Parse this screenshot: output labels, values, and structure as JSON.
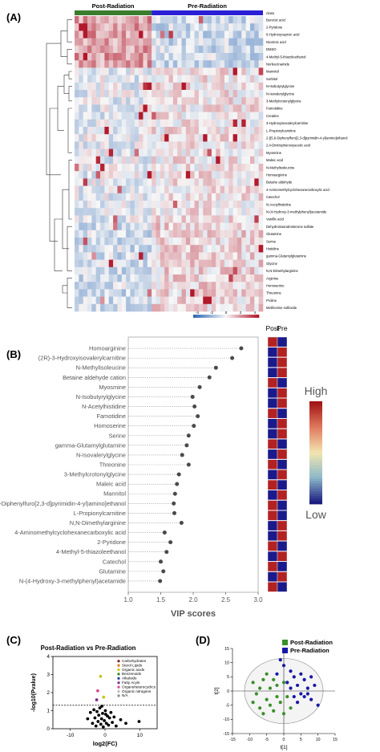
{
  "panels": {
    "a": "(A)",
    "b": "(B)",
    "c": "(C)",
    "d": "(D)"
  },
  "chart_data": [
    {
      "type": "heatmap",
      "panel": "(A)",
      "groups": [
        {
          "name": "Post-Radiation",
          "color": "#3a7d2c"
        },
        {
          "name": "Pre-Radiation",
          "color": "#2b1fd6"
        }
      ],
      "annotation_label": "class",
      "rows": [
        "Benzoic acid",
        "2-Pyridone",
        "6-Hydroxycaproic acid",
        "Nicotinic acid",
        "DMSO",
        "4-Methyl-5-thiazoleethanol",
        "Norleucinamide",
        "Mannitol",
        "Sorbitol",
        "N-Isobutyrylglycine",
        "N-Isovalerylglycine",
        "3-Methylcrotonylglycine",
        "Famotidine",
        "Creatine",
        "3-Hydroxyisovalerylcarnitine",
        "L-Propionylcarnitine",
        "2-[(5,6-Diphenylfuro[2,3-d]pyrimidin-4-yl)amino]ethanol",
        "2,4-Dinitrophenoxyacetic acid",
        "Myosmine",
        "Maleic acid",
        "N-Methylisoleucine",
        "Homoarginine",
        "Betaine aldehyde",
        "4-Aminomethylcyclohexanecarboxylic acid",
        "Catechol",
        "N-Acetylhistidine",
        "N-(4-Hydroxy-3-methylphenyl)acetamide",
        "Vanillic acid",
        "Dehydroisoandrosterone sulfate",
        "Glutamine",
        "Serine",
        "Histidine",
        "gamma-Glutamylglutamine",
        "Glycine",
        "N,N-Dimethylarginine",
        "Arginine",
        "Homoserine",
        "Threonine",
        "Proline",
        "Methionine sulfoxide"
      ],
      "color_scale": {
        "ticks": [
          "-4",
          "-2",
          "0",
          "2",
          "4"
        ],
        "low": "#2e68b4",
        "mid": "#f7f7f7",
        "high": "#b2182b"
      }
    },
    {
      "type": "scatter",
      "panel": "(B)",
      "xlabel": "VIP scores",
      "xlim": [
        1.0,
        3.0
      ],
      "xticks": [
        "1.0",
        "1.5",
        "2.0",
        "2.5",
        "3.0"
      ],
      "categories": [
        "Homoarginine",
        "(2R)-3-Hydroxyisovalerylcarnitine",
        "N-Methylisoleucine",
        "Betaine aldehyde cation",
        "Myosmine",
        "N-Isobutyrylglycine",
        "N-Acetylhistidine",
        "Famotidine",
        "Homoserine",
        "Serine",
        "gamma-Glutamylglutamine",
        "N-Isovalerylglycine",
        "Threonine",
        "3-Methylcrotonylglycine",
        "Maleic acid",
        "Mannitol",
        "2-[(5,6-Diphenylfuro[2,3-d]pyrimidin-4-yl)amino]ethanol",
        "L-Propionylcarnitine",
        "N,N-Dimethylarginine",
        "4-Aminomethylcyclohexanecarboxylic acid",
        "2-Pyridone",
        "4-Methyl-5-thiazoleethanol",
        "Catechol",
        "Glutamine",
        "N-(4-Hydroxy-3-methylphenyl)acetamide"
      ],
      "values": [
        2.74,
        2.6,
        2.35,
        2.25,
        2.1,
        1.99,
        2.02,
        2.07,
        2.01,
        1.93,
        1.9,
        1.83,
        1.93,
        1.78,
        1.75,
        1.72,
        1.7,
        1.71,
        1.82,
        1.56,
        1.65,
        1.59,
        1.5,
        1.54,
        1.49
      ],
      "group_labels": [
        "Post",
        "Pre"
      ],
      "post_high": [
        true,
        false,
        false,
        false,
        true,
        false,
        false,
        true,
        false,
        false,
        true,
        false,
        true,
        false,
        true,
        false,
        true,
        true,
        false,
        false,
        true,
        false,
        true,
        false,
        true
      ],
      "legend": {
        "high": "High",
        "low": "Low"
      }
    },
    {
      "type": "scatter",
      "panel": "(C)",
      "title": "Post-Radiation vs Pre-Radiation",
      "xlabel": "log2(FC)",
      "ylabel": "-log10(Pvalue)",
      "xlim": [
        -15,
        15
      ],
      "ylim": [
        0,
        4
      ],
      "xticks": [
        "-10",
        "0",
        "10"
      ],
      "yticks": [
        "0",
        "1",
        "2",
        "3",
        "4"
      ],
      "threshold_y": 1.3,
      "legend": [
        {
          "name": "Carbohydrates",
          "color": "#8b1a1a"
        },
        {
          "name": "Sterol Lipids",
          "color": "#e07b1a"
        },
        {
          "name": "Organic acids",
          "color": "#c8c41e"
        },
        {
          "name": "Benzenoids",
          "color": "#2e8b2e"
        },
        {
          "name": "Alkaloids",
          "color": "#1f3fa0"
        },
        {
          "name": "Fatty Acyls",
          "color": "#7a2a8a"
        },
        {
          "name": "Organoheterocyclics",
          "color": "#e0478a"
        },
        {
          "name": "Organic nitrogens",
          "color": "#bdbdbd"
        },
        {
          "name": "N/A",
          "color": "#8a8a8a"
        }
      ],
      "points": [
        {
          "x": -1.3,
          "y": 2.9,
          "color": "#c8c41e"
        },
        {
          "x": -2.1,
          "y": 2.1,
          "color": "#e0478a"
        },
        {
          "x": -2.4,
          "y": 1.6,
          "color": "#7a2a8a"
        },
        {
          "x": -0.4,
          "y": 1.75,
          "color": "#c8c41e"
        },
        {
          "x": -5,
          "y": 0.55,
          "color": "#000000"
        },
        {
          "x": -4.2,
          "y": 0.9,
          "color": "#000000"
        },
        {
          "x": -3.6,
          "y": 0.3,
          "color": "#000000"
        },
        {
          "x": -3.2,
          "y": 1.05,
          "color": "#000000"
        },
        {
          "x": -2.9,
          "y": 0.6,
          "color": "#000000"
        },
        {
          "x": -2.6,
          "y": 0.15,
          "color": "#000000"
        },
        {
          "x": -2.3,
          "y": 0.95,
          "color": "#000000"
        },
        {
          "x": -2.0,
          "y": 0.4,
          "color": "#000000"
        },
        {
          "x": -1.8,
          "y": 0.75,
          "color": "#000000"
        },
        {
          "x": -1.5,
          "y": 1.15,
          "color": "#000000"
        },
        {
          "x": -1.2,
          "y": 0.25,
          "color": "#000000"
        },
        {
          "x": -1.0,
          "y": 0.55,
          "color": "#000000"
        },
        {
          "x": -0.7,
          "y": 0.85,
          "color": "#000000"
        },
        {
          "x": -0.5,
          "y": 0.1,
          "color": "#000000"
        },
        {
          "x": -0.2,
          "y": 0.45,
          "color": "#000000"
        },
        {
          "x": 0.1,
          "y": 1.0,
          "color": "#000000"
        },
        {
          "x": 0.4,
          "y": 0.3,
          "color": "#000000"
        },
        {
          "x": 0.7,
          "y": 0.7,
          "color": "#000000"
        },
        {
          "x": 1.0,
          "y": 0.2,
          "color": "#000000"
        },
        {
          "x": 1.3,
          "y": 0.6,
          "color": "#000000"
        },
        {
          "x": 1.7,
          "y": 0.9,
          "color": "#000000"
        },
        {
          "x": 2.1,
          "y": 0.35,
          "color": "#000000"
        },
        {
          "x": 2.6,
          "y": 0.65,
          "color": "#000000"
        },
        {
          "x": 3.2,
          "y": 0.15,
          "color": "#000000"
        },
        {
          "x": 4.5,
          "y": 0.5,
          "color": "#000000"
        },
        {
          "x": 6.0,
          "y": 0.3,
          "color": "#000000"
        },
        {
          "x": 9.8,
          "y": 0.4,
          "color": "#000000"
        },
        {
          "x": -0.9,
          "y": 1.25,
          "color": "#000000"
        },
        {
          "x": 0.2,
          "y": 0.8,
          "color": "#000000"
        }
      ]
    },
    {
      "type": "scatter",
      "panel": "(D)",
      "xlabel": "t[1]",
      "ylabel": "t[2]",
      "xlim": [
        -15,
        15
      ],
      "ylim": [
        -15,
        15
      ],
      "xticks": [
        "-15",
        "-10",
        "-5",
        "0",
        "5",
        "10",
        "15"
      ],
      "yticks": [
        "-15",
        "-10",
        "-5",
        "0",
        "5",
        "10",
        "15"
      ],
      "series": [
        {
          "name": "Post-Radiation",
          "color": "#3a8f2a",
          "points": [
            [
              -9,
              3
            ],
            [
              -8,
              -1
            ],
            [
              -7,
              -6
            ],
            [
              -6,
              4
            ],
            [
              -5,
              -3
            ],
            [
              -4,
              1
            ],
            [
              -3,
              -7
            ],
            [
              -2,
              2
            ],
            [
              -1,
              -4
            ],
            [
              0,
              -8
            ],
            [
              1,
              -2
            ],
            [
              -6,
              -8
            ],
            [
              -3,
              4
            ],
            [
              -5,
              6
            ],
            [
              -7,
              1
            ],
            [
              -2,
              -2
            ],
            [
              -4,
              -5
            ],
            [
              2,
              -6
            ],
            [
              -9,
              -4
            ],
            [
              0,
              3
            ]
          ]
        },
        {
          "name": "Pre-Radiation",
          "color": "#1717a8",
          "points": [
            [
              -1,
              11
            ],
            [
              0,
              9
            ],
            [
              2,
              7
            ],
            [
              3,
              5
            ],
            [
              1,
              3
            ],
            [
              4,
              2
            ],
            [
              5,
              -1
            ],
            [
              6,
              4
            ],
            [
              7,
              1
            ],
            [
              8,
              -3
            ],
            [
              9,
              2
            ],
            [
              10,
              -5
            ],
            [
              3,
              -2
            ],
            [
              5,
              6
            ],
            [
              7,
              -1
            ],
            [
              4,
              -4
            ],
            [
              2,
              1
            ],
            [
              6,
              -2
            ],
            [
              -2,
              6
            ],
            [
              8,
              5
            ]
          ]
        }
      ]
    }
  ]
}
